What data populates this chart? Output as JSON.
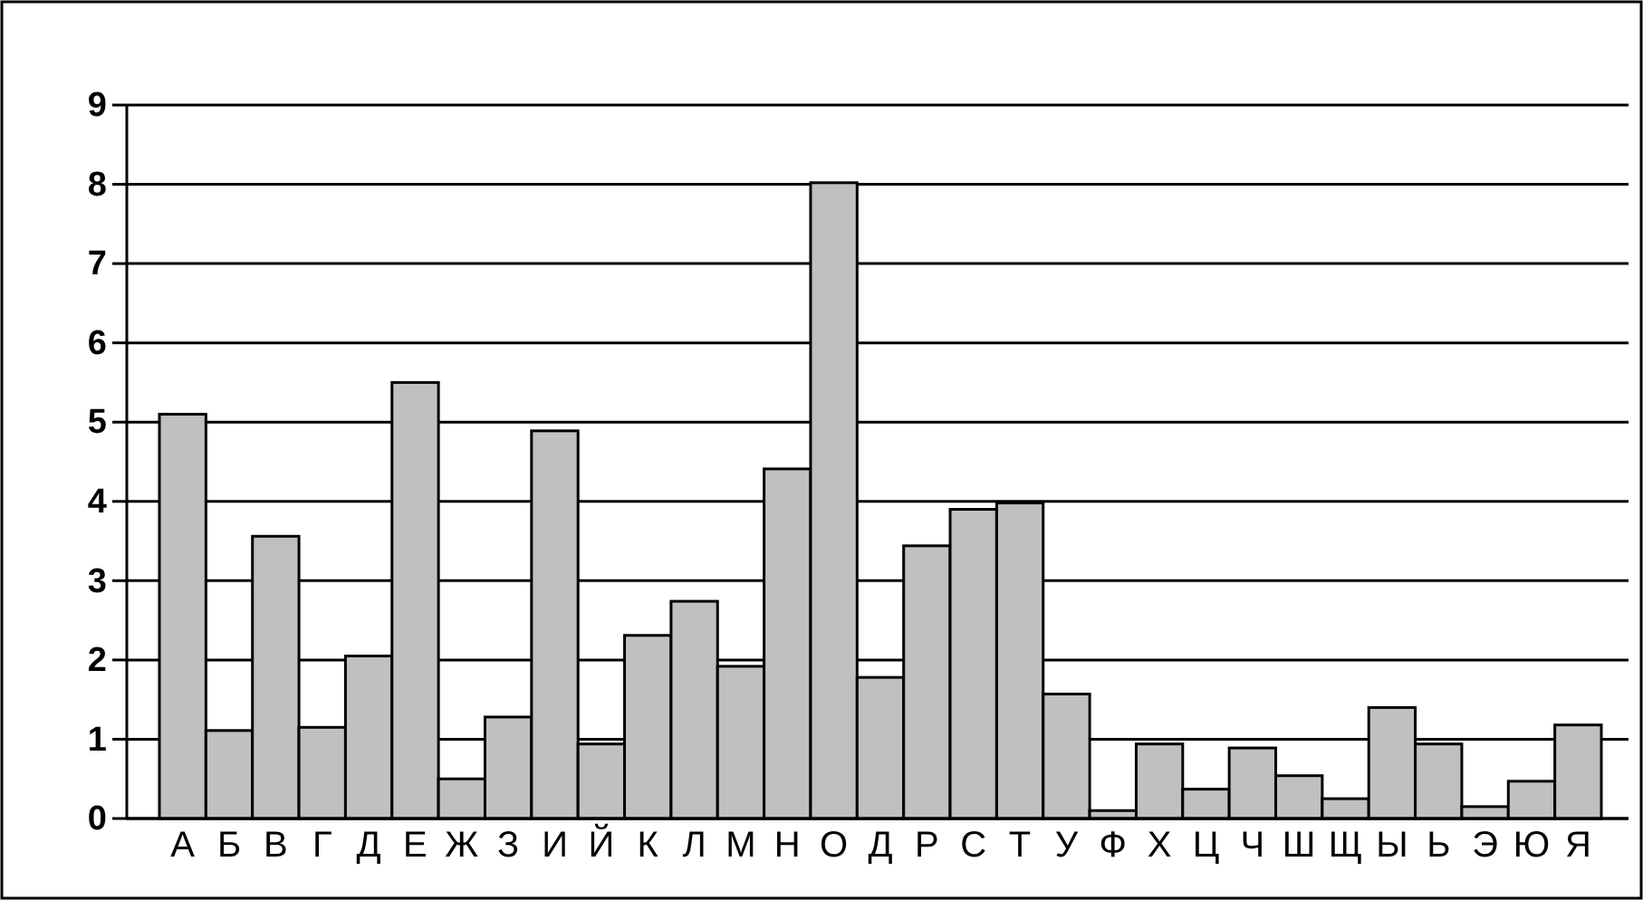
{
  "chart_data": {
    "type": "bar",
    "categories": [
      "А",
      "Б",
      "В",
      "Г",
      "Д",
      "Е",
      "Ж",
      "З",
      "И",
      "Й",
      "К",
      "Л",
      "М",
      "Н",
      "О",
      "Д",
      "Р",
      "С",
      "Т",
      "У",
      "Ф",
      "Х",
      "Ц",
      "Ч",
      "Ш",
      "Щ",
      "Ы",
      "Ь",
      "Э",
      "Ю",
      "Я"
    ],
    "values": [
      5.1,
      1.11,
      3.56,
      1.15,
      2.05,
      5.5,
      0.5,
      1.28,
      4.89,
      0.94,
      2.31,
      2.74,
      1.92,
      4.41,
      8.02,
      1.78,
      3.44,
      3.9,
      3.98,
      1.57,
      0.1,
      0.94,
      0.37,
      0.89,
      0.54,
      0.25,
      1.4,
      0.94,
      0.15,
      0.47,
      1.18
    ],
    "color": "#c0c0c0",
    "ylim": [
      0,
      9
    ],
    "yticks": [
      0,
      1,
      2,
      3,
      4,
      5,
      6,
      7,
      8,
      9
    ],
    "grid": "y"
  }
}
